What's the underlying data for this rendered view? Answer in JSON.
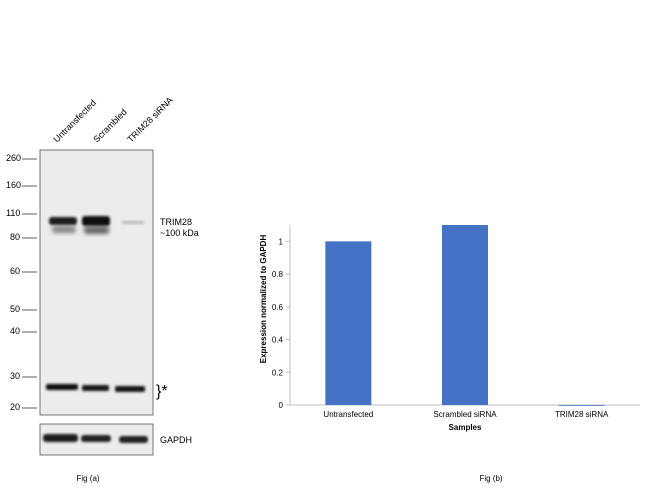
{
  "figure_a": {
    "caption": "Fig (a)",
    "lanes": [
      "Untransfected",
      "Scrambled",
      "TRIM28 siRNA"
    ],
    "markers": [
      "260",
      "160",
      "110",
      "80",
      "60",
      "50",
      "40",
      "30",
      "20"
    ],
    "band_label_line1": "TRIM28",
    "band_label_line2": "~100 kDa",
    "nonspecific_marker": "}*",
    "loading_control_label": "GAPDH"
  },
  "chart_data": {
    "type": "bar",
    "title": "",
    "caption": "Fig (b)",
    "categories": [
      "Untransfected",
      "Scrambled siRNA",
      "TRIM28 siRNA"
    ],
    "values": [
      1.0,
      1.1,
      0.0
    ],
    "xlabel": "Samples",
    "ylabel": "Expression  normalized to GAPDH",
    "ylim": [
      0,
      1.1
    ],
    "yticks": [
      "0",
      "0.2",
      "0.4",
      "0.6",
      "0.8",
      "1"
    ],
    "ytick_values": [
      0,
      0.2,
      0.4,
      0.6,
      0.8,
      1.0
    ],
    "grid": false,
    "bar_color": "#4472c4"
  }
}
